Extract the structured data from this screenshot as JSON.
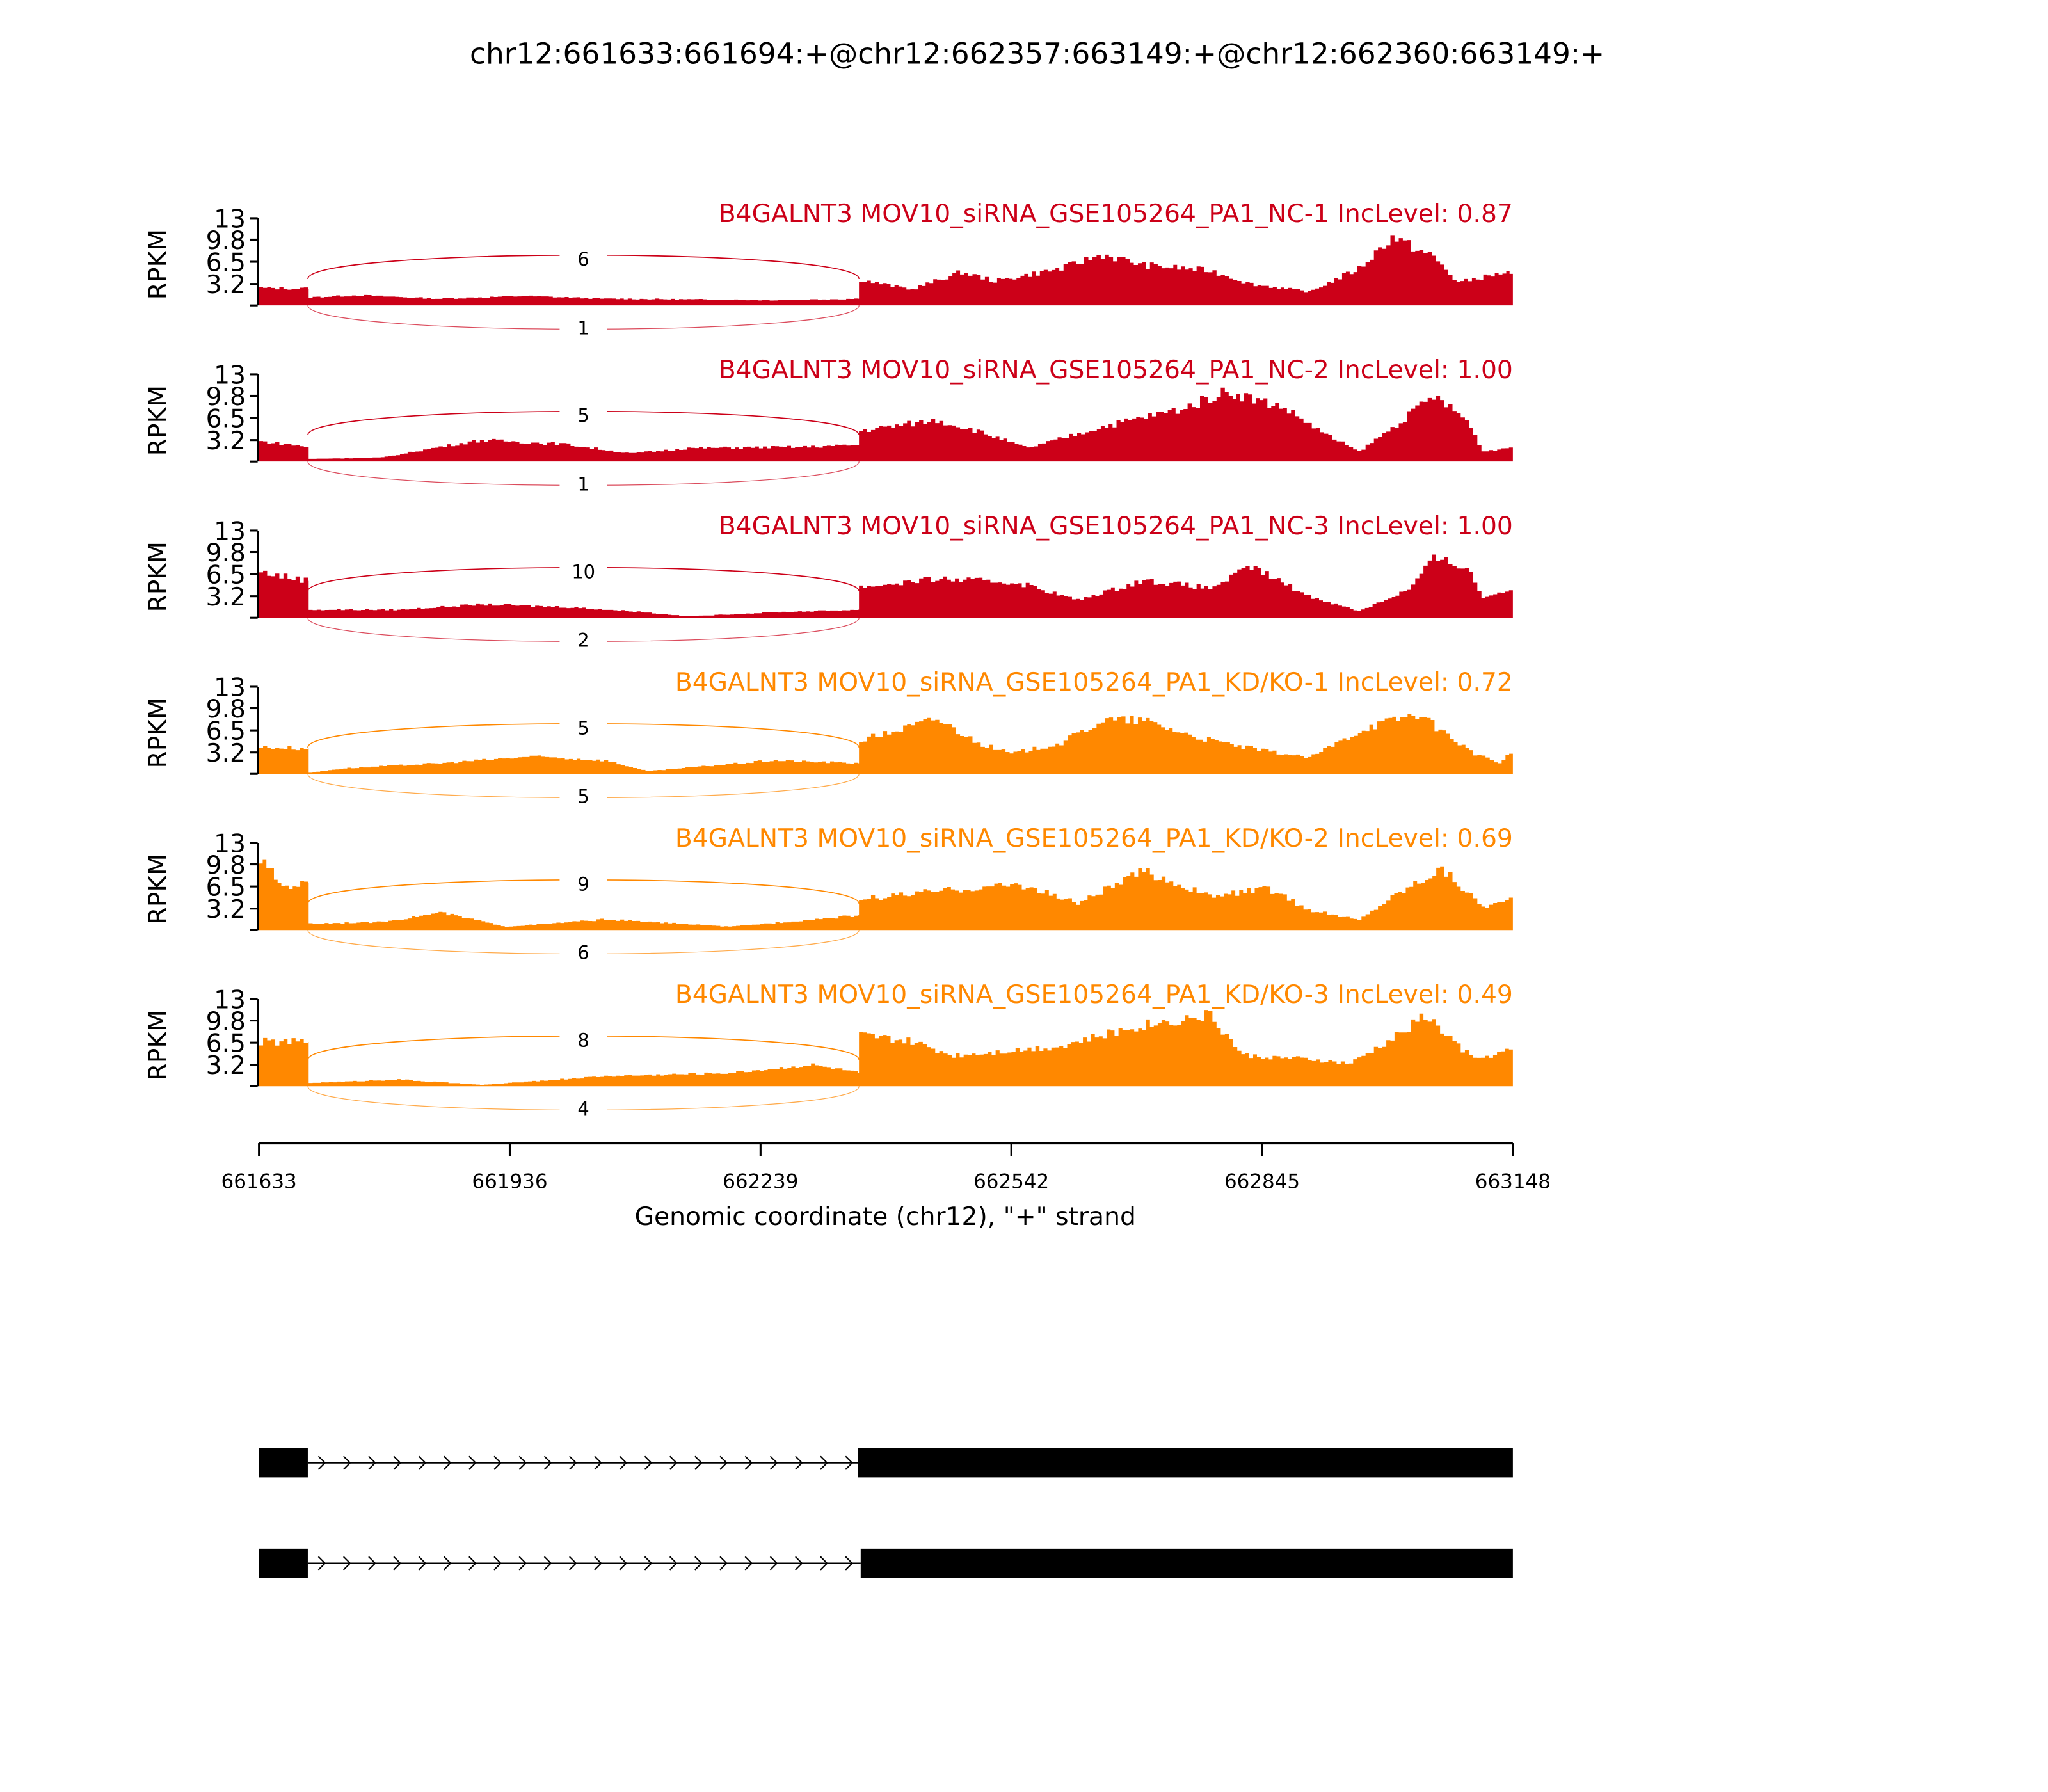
{
  "chart_data": {
    "type": "area",
    "title": "chr12:661633:661694:+@chr12:662357:663149:+@chr12:662360:663149:+",
    "xlabel": "Genomic coordinate (chr12), \"+\" strand",
    "ylabel": "RPKM",
    "xlim": [
      661633,
      663148
    ],
    "ylim": [
      0,
      13
    ],
    "xticks": [
      "661633",
      "661936",
      "662239",
      "662542",
      "662845",
      "663148"
    ],
    "yticks": [
      "13",
      "9.8",
      "6.5",
      "3.2"
    ],
    "ytick_values": [
      13,
      9.8,
      6.5,
      3.2
    ],
    "exon1_end": 661692,
    "exon2_start": 662358,
    "samples": [
      {
        "label": "B4GALNT3 MOV10_siRNA_GSE105264_PA1_NC-1 IncLevel: 0.87",
        "color": "#cc0018",
        "junction_above": "6",
        "junction_below": "1",
        "coverage": [
          [
            661633,
            2.6
          ],
          [
            661692,
            2.5
          ],
          [
            661693,
            1.2
          ],
          [
            661750,
            1.5
          ],
          [
            661850,
            1.0
          ],
          [
            661950,
            1.4
          ],
          [
            662050,
            1.0
          ],
          [
            662150,
            0.9
          ],
          [
            662250,
            0.8
          ],
          [
            662357,
            1.0
          ],
          [
            662358,
            3.8
          ],
          [
            662420,
            2.4
          ],
          [
            662480,
            5.0
          ],
          [
            662520,
            3.6
          ],
          [
            662600,
            5.5
          ],
          [
            662650,
            7.6
          ],
          [
            662700,
            6.0
          ],
          [
            662780,
            5.2
          ],
          [
            662830,
            3.2
          ],
          [
            662900,
            2.0
          ],
          [
            662960,
            5.5
          ],
          [
            663000,
            10.2
          ],
          [
            663050,
            7.2
          ],
          [
            663080,
            3.4
          ],
          [
            663140,
            5.0
          ],
          [
            663148,
            3.8
          ]
        ]
      },
      {
        "label": "B4GALNT3 MOV10_siRNA_GSE105264_PA1_NC-2 IncLevel: 1.00",
        "color": "#cc0018",
        "junction_above": "5",
        "junction_below": "1",
        "coverage": [
          [
            661633,
            3.0
          ],
          [
            661692,
            2.2
          ],
          [
            661693,
            0.4
          ],
          [
            661780,
            0.6
          ],
          [
            661850,
            2.2
          ],
          [
            661900,
            3.2
          ],
          [
            662000,
            2.6
          ],
          [
            662080,
            1.2
          ],
          [
            662150,
            2.0
          ],
          [
            662300,
            2.2
          ],
          [
            662357,
            2.5
          ],
          [
            662358,
            4.6
          ],
          [
            662450,
            6.2
          ],
          [
            662500,
            4.5
          ],
          [
            662560,
            2.0
          ],
          [
            662650,
            5.2
          ],
          [
            662750,
            8.0
          ],
          [
            662800,
            10.5
          ],
          [
            662870,
            8.0
          ],
          [
            662920,
            4.0
          ],
          [
            662960,
            1.5
          ],
          [
            663000,
            5.0
          ],
          [
            663050,
            9.8
          ],
          [
            663090,
            6.2
          ],
          [
            663110,
            1.5
          ],
          [
            663148,
            2.2
          ]
        ]
      },
      {
        "label": "B4GALNT3 MOV10_siRNA_GSE105264_PA1_NC-3 IncLevel: 1.00",
        "color": "#cc0018",
        "junction_above": "10",
        "junction_below": "2",
        "coverage": [
          [
            661633,
            6.8
          ],
          [
            661692,
            5.5
          ],
          [
            661693,
            1.2
          ],
          [
            661800,
            1.2
          ],
          [
            661900,
            2.0
          ],
          [
            662000,
            1.6
          ],
          [
            662080,
            1.0
          ],
          [
            662150,
            0.2
          ],
          [
            662250,
            0.8
          ],
          [
            662357,
            1.2
          ],
          [
            662358,
            4.6
          ],
          [
            662450,
            5.8
          ],
          [
            662550,
            5.2
          ],
          [
            662620,
            2.6
          ],
          [
            662700,
            5.6
          ],
          [
            662780,
            4.4
          ],
          [
            662830,
            7.6
          ],
          [
            662900,
            3.2
          ],
          [
            662960,
            1.0
          ],
          [
            663020,
            4.2
          ],
          [
            663050,
            8.8
          ],
          [
            663090,
            7.6
          ],
          [
            663110,
            3.0
          ],
          [
            663148,
            4.5
          ]
        ]
      },
      {
        "label": "B4GALNT3 MOV10_siRNA_GSE105264_PA1_KD/KO-1 IncLevel: 0.72",
        "color": "#ff8800",
        "junction_above": "5",
        "junction_below": "5",
        "coverage": [
          [
            661633,
            4.0
          ],
          [
            661692,
            3.8
          ],
          [
            661693,
            0.2
          ],
          [
            661730,
            0.8
          ],
          [
            661850,
            1.6
          ],
          [
            661960,
            2.6
          ],
          [
            662050,
            2.0
          ],
          [
            662100,
            0.4
          ],
          [
            662250,
            2.0
          ],
          [
            662357,
            1.6
          ],
          [
            662358,
            5.0
          ],
          [
            662450,
            8.2
          ],
          [
            662500,
            4.6
          ],
          [
            662540,
            3.0
          ],
          [
            662600,
            4.6
          ],
          [
            662650,
            8.0
          ],
          [
            662700,
            8.0
          ],
          [
            662760,
            5.6
          ],
          [
            662820,
            4.0
          ],
          [
            662900,
            2.4
          ],
          [
            662970,
            7.0
          ],
          [
            663030,
            9.0
          ],
          [
            663100,
            3.0
          ],
          [
            663130,
            1.6
          ],
          [
            663148,
            3.6
          ]
        ]
      },
      {
        "label": "B4GALNT3 MOV10_siRNA_GSE105264_PA1_KD/KO-2 IncLevel: 0.69",
        "color": "#ff8800",
        "junction_above": "9",
        "junction_below": "6",
        "coverage": [
          [
            661633,
            10.5
          ],
          [
            661660,
            6.5
          ],
          [
            661692,
            7.0
          ],
          [
            661693,
            1.0
          ],
          [
            661780,
            1.2
          ],
          [
            661850,
            2.6
          ],
          [
            661930,
            0.5
          ],
          [
            662050,
            1.6
          ],
          [
            662200,
            0.5
          ],
          [
            662357,
            2.2
          ],
          [
            662358,
            4.6
          ],
          [
            662450,
            5.8
          ],
          [
            662550,
            6.8
          ],
          [
            662620,
            4.0
          ],
          [
            662700,
            8.8
          ],
          [
            662780,
            5.0
          ],
          [
            662850,
            6.2
          ],
          [
            662900,
            3.0
          ],
          [
            662960,
            1.5
          ],
          [
            663000,
            5.0
          ],
          [
            663060,
            9.2
          ],
          [
            663110,
            3.5
          ],
          [
            663148,
            4.6
          ]
        ]
      },
      {
        "label": "B4GALNT3 MOV10_siRNA_GSE105264_PA1_KD/KO-3 IncLevel: 0.49",
        "color": "#ff8800",
        "junction_above": "8",
        "junction_below": "4",
        "coverage": [
          [
            661633,
            6.6
          ],
          [
            661692,
            6.6
          ],
          [
            661693,
            0.5
          ],
          [
            661800,
            1.0
          ],
          [
            661900,
            0.2
          ],
          [
            662050,
            1.5
          ],
          [
            662200,
            2.0
          ],
          [
            662300,
            3.2
          ],
          [
            662357,
            2.0
          ],
          [
            662358,
            7.6
          ],
          [
            662420,
            6.6
          ],
          [
            662470,
            4.6
          ],
          [
            662600,
            6.0
          ],
          [
            662700,
            9.2
          ],
          [
            662780,
            10.6
          ],
          [
            662820,
            4.6
          ],
          [
            662900,
            4.0
          ],
          [
            662950,
            3.4
          ],
          [
            663000,
            7.0
          ],
          [
            663040,
            10.6
          ],
          [
            663080,
            6.0
          ],
          [
            663100,
            4.0
          ],
          [
            663148,
            5.6
          ]
        ]
      }
    ],
    "transcripts": [
      {
        "exons": [
          [
            661633,
            661692
          ],
          [
            662357,
            663148
          ]
        ]
      },
      {
        "exons": [
          [
            661633,
            661692
          ],
          [
            662360,
            663148
          ]
        ]
      }
    ]
  }
}
